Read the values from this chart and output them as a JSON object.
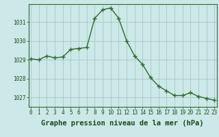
{
  "x": [
    0,
    1,
    2,
    3,
    4,
    5,
    6,
    7,
    8,
    9,
    10,
    11,
    12,
    13,
    14,
    15,
    16,
    17,
    18,
    19,
    20,
    21,
    22,
    23
  ],
  "y": [
    1029.05,
    1029.0,
    1029.2,
    1029.1,
    1029.15,
    1029.55,
    1029.6,
    1029.65,
    1031.2,
    1031.65,
    1031.75,
    1031.2,
    1030.0,
    1029.2,
    1028.75,
    1028.05,
    1027.6,
    1027.35,
    1027.1,
    1027.1,
    1027.25,
    1027.05,
    1026.95,
    1026.85
  ],
  "line_color": "#2d6a2d",
  "marker": "+",
  "marker_size": 4,
  "bg_color": "#cce8e8",
  "grid_color_major": "#a0c0c0",
  "grid_color_minor": "#b8d8d8",
  "ylim": [
    1026.5,
    1031.95
  ],
  "xlim": [
    -0.3,
    23.3
  ],
  "yticks": [
    1027,
    1028,
    1029,
    1030,
    1031
  ],
  "xticks": [
    0,
    1,
    2,
    3,
    4,
    5,
    6,
    7,
    8,
    9,
    10,
    11,
    12,
    13,
    14,
    15,
    16,
    17,
    18,
    19,
    20,
    21,
    22,
    23
  ],
  "xlabel": "Graphe pression niveau de la mer (hPa)",
  "axis_label_color": "#1a4a1a",
  "tick_label_color": "#1a4a1a",
  "tick_label_size": 5.5,
  "xlabel_size": 7.5,
  "spine_color": "#2d6a2d",
  "line_width": 1.0,
  "marker_color": "#2d6a2d"
}
